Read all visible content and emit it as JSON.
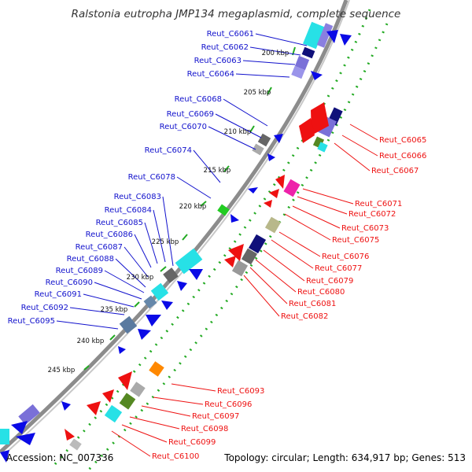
{
  "title": "Ralstonia eutropha JMP134 megaplasmid, complete sequence",
  "footer": {
    "accession": "Accession: NC_007336",
    "topology": "Topology: circular; Length: 634,917 bp; Genes: 513"
  },
  "colors": {
    "backbone": "#8a8a8a",
    "gc_dots": "#22aa22",
    "forward_label": "#1111cc",
    "reverse_label": "#ee1111",
    "cds_forward": "#0a0ae6",
    "cds_reverse": "#ee1111"
  },
  "scale_ticks": [
    "200 kbp",
    "205 kbp",
    "210 kbp",
    "215 kbp",
    "220 kbp",
    "225 kbp",
    "230 kbp",
    "235 kbp",
    "240 kbp",
    "245 kbp"
  ],
  "forward_genes": [
    "Reut_C6061",
    "Reut_C6062",
    "Reut_C6063",
    "Reut_C6064",
    "Reut_C6068",
    "Reut_C6069",
    "Reut_C6070",
    "Reut_C6074",
    "Reut_C6078",
    "Reut_C6083",
    "Reut_C6084",
    "Reut_C6085",
    "Reut_C6086",
    "Reut_C6087",
    "Reut_C6088",
    "Reut_C6089",
    "Reut_C6090",
    "Reut_C6091",
    "Reut_C6092",
    "Reut_C6095"
  ],
  "reverse_genes": [
    "Reut_C6065",
    "Reut_C6066",
    "Reut_C6067",
    "Reut_C6071",
    "Reut_C6072",
    "Reut_C6073",
    "Reut_C6075",
    "Reut_C6076",
    "Reut_C6077",
    "Reut_C6079",
    "Reut_C6080",
    "Reut_C6081",
    "Reut_C6082",
    "Reut_C6093",
    "Reut_C6096",
    "Reut_C6097",
    "Reut_C6098",
    "Reut_C6099",
    "Reut_C6100"
  ]
}
